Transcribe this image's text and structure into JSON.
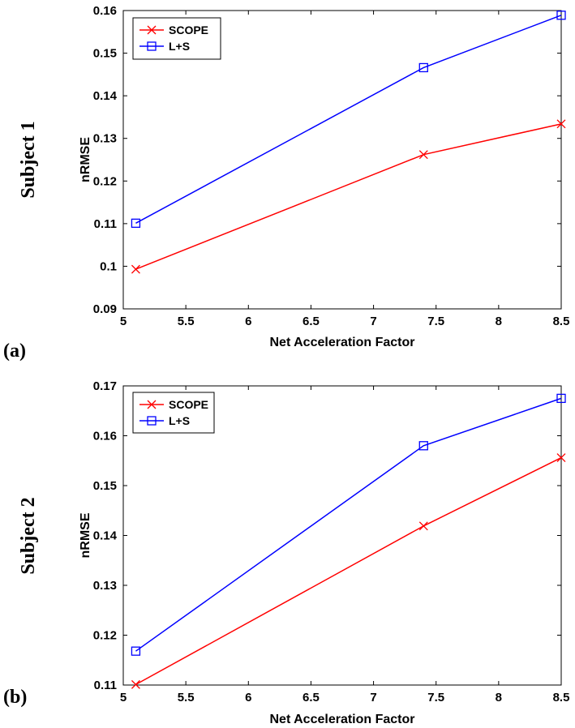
{
  "chart_data": [
    {
      "type": "line",
      "panel_label": "(a)",
      "side_label": "Subject 1",
      "xlabel": "Net Acceleration Factor",
      "ylabel": "nRMSE",
      "xlim": [
        5,
        8.5
      ],
      "ylim": [
        0.09,
        0.16
      ],
      "xticks": [
        "5",
        "5.5",
        "6",
        "6.5",
        "7",
        "7.5",
        "8",
        "8.5"
      ],
      "yticks": [
        "0.09",
        "0.1",
        "0.11",
        "0.12",
        "0.13",
        "0.14",
        "0.15",
        "0.16"
      ],
      "x": [
        5.1,
        7.4,
        8.5
      ],
      "legend_position": "top-left",
      "series": [
        {
          "name": "SCOPE",
          "color": "#ff0000",
          "marker": "x",
          "values": [
            0.0993,
            0.1262,
            0.1334
          ]
        },
        {
          "name": "L+S",
          "color": "#0000ff",
          "marker": "square",
          "values": [
            0.1101,
            0.1466,
            0.1589
          ]
        }
      ]
    },
    {
      "type": "line",
      "panel_label": "(b)",
      "side_label": "Subject 2",
      "xlabel": "Net Acceleration Factor",
      "ylabel": "nRMSE",
      "xlim": [
        5,
        8.5
      ],
      "ylim": [
        0.11,
        0.17
      ],
      "xticks": [
        "5",
        "5.5",
        "6",
        "6.5",
        "7",
        "7.5",
        "8",
        "8.5"
      ],
      "yticks": [
        "0.11",
        "0.12",
        "0.13",
        "0.14",
        "0.15",
        "0.16",
        "0.17"
      ],
      "x": [
        5.1,
        7.4,
        8.5
      ],
      "legend_position": "top-left",
      "series": [
        {
          "name": "SCOPE",
          "color": "#ff0000",
          "marker": "x",
          "values": [
            0.1101,
            0.1419,
            0.1556
          ]
        },
        {
          "name": "L+S",
          "color": "#0000ff",
          "marker": "square",
          "values": [
            0.1168,
            0.158,
            0.1675
          ]
        }
      ]
    }
  ]
}
